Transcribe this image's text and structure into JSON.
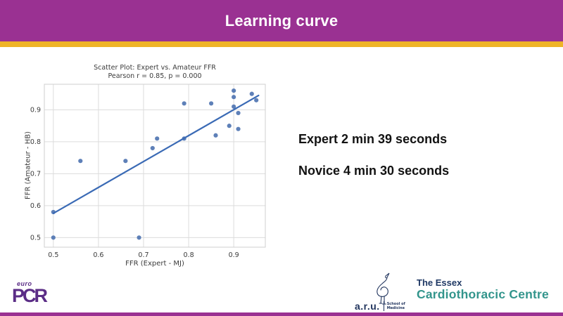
{
  "header": {
    "title": "Learning curve",
    "bg_color": "#9A3192",
    "accent_color": "#EFB428"
  },
  "body": {
    "expert_line": "Expert 2 min 39 seconds",
    "novice_line": "Novice 4 min 30 seconds"
  },
  "chart_data": {
    "type": "scatter",
    "title": "Scatter Plot: Expert vs. Amateur FFR",
    "subtitle": "Pearson r = 0.85, p = 0.000",
    "xlabel": "FFR (Expert - MJ)",
    "ylabel": "FFR (Amateur - HB)",
    "xlim": [
      0.48,
      0.97
    ],
    "ylim": [
      0.47,
      0.98
    ],
    "xticks": [
      0.5,
      0.6,
      0.7,
      0.8,
      0.9
    ],
    "yticks": [
      0.5,
      0.6,
      0.7,
      0.8,
      0.9
    ],
    "grid": true,
    "legend": "none",
    "point_color": "#4C72B0",
    "line_color": "#3A6AB5",
    "points": [
      [
        0.5,
        0.58
      ],
      [
        0.5,
        0.5
      ],
      [
        0.56,
        0.74
      ],
      [
        0.66,
        0.74
      ],
      [
        0.69,
        0.5
      ],
      [
        0.72,
        0.78
      ],
      [
        0.73,
        0.81
      ],
      [
        0.79,
        0.92
      ],
      [
        0.79,
        0.81
      ],
      [
        0.85,
        0.92
      ],
      [
        0.86,
        0.82
      ],
      [
        0.89,
        0.85
      ],
      [
        0.9,
        0.96
      ],
      [
        0.9,
        0.94
      ],
      [
        0.9,
        0.91
      ],
      [
        0.91,
        0.89
      ],
      [
        0.91,
        0.84
      ],
      [
        0.94,
        0.95
      ],
      [
        0.95,
        0.93
      ]
    ],
    "regression_line": {
      "x1": 0.5,
      "y1": 0.576,
      "x2": 0.955,
      "y2": 0.945
    }
  },
  "logos": {
    "europcr": {
      "top": "euro",
      "bottom": "PCR",
      "color": "#5B2D86"
    },
    "aru": {
      "name": "a.r.u.",
      "school_line1": "School of",
      "school_line2": "Medicine"
    },
    "essex": {
      "line1": "The Essex",
      "line2": "Cardiothoracic Centre",
      "color_line1": "#1F3864",
      "color_line2": "#33958C"
    }
  }
}
